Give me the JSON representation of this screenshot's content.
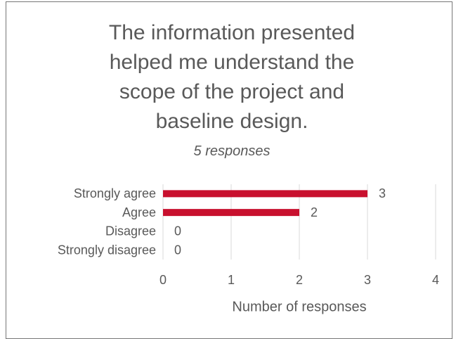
{
  "chart_data": {
    "type": "bar",
    "orientation": "horizontal",
    "title": "The information presented helped me understand the scope of the project and baseline design.",
    "subtitle": "5 responses",
    "categories": [
      "Strongly agree",
      "Agree",
      "Disagree",
      "Strongly disagree"
    ],
    "values": [
      3,
      2,
      0,
      0
    ],
    "color": "#c8102e",
    "xlabel": "Number of responses",
    "xlim": [
      0,
      4
    ],
    "xticks": [
      0,
      1,
      2,
      3,
      4
    ],
    "grid": true
  }
}
